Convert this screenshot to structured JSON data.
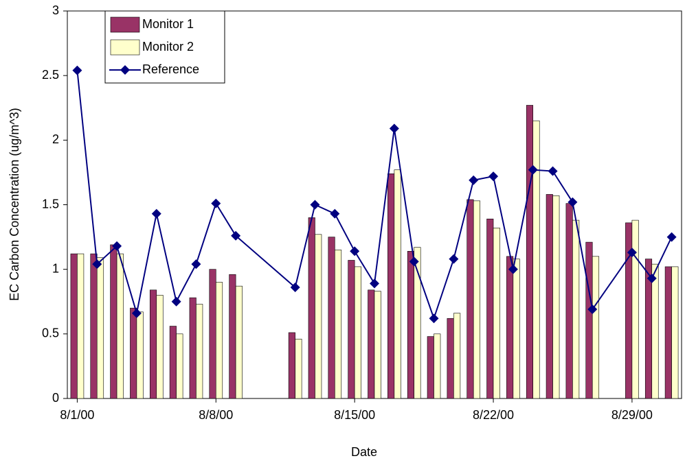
{
  "chart_data": {
    "type": "bar-line",
    "xlabel": "Date",
    "ylabel": "EC Carbon Concentration (ug/m^3)",
    "x": [
      "8/1/00",
      "8/2/00",
      "8/3/00",
      "8/4/00",
      "8/5/00",
      "8/6/00",
      "8/7/00",
      "8/8/00",
      "8/9/00",
      "8/12/00",
      "8/13/00",
      "8/14/00",
      "8/15/00",
      "8/16/00",
      "8/17/00",
      "8/18/00",
      "8/19/00",
      "8/20/00",
      "8/21/00",
      "8/22/00",
      "8/23/00",
      "8/24/00",
      "8/25/00",
      "8/26/00",
      "8/27/00",
      "8/29/00",
      "8/30/00",
      "8/31/00"
    ],
    "series": [
      {
        "name": "Monitor 1",
        "kind": "bar",
        "color": "#993366",
        "values": [
          1.12,
          1.12,
          1.19,
          0.7,
          0.84,
          0.56,
          0.78,
          1.0,
          0.96,
          0.51,
          1.4,
          1.25,
          1.07,
          0.84,
          1.74,
          1.14,
          0.48,
          0.62,
          1.54,
          1.39,
          1.1,
          2.27,
          1.58,
          1.51,
          1.21,
          1.36,
          1.08,
          1.02
        ]
      },
      {
        "name": "Monitor 2",
        "kind": "bar",
        "color": "#FFFFCC",
        "values": [
          1.12,
          1.09,
          1.12,
          0.67,
          0.8,
          0.5,
          0.73,
          0.9,
          0.87,
          0.46,
          1.27,
          1.15,
          1.02,
          0.83,
          1.77,
          1.17,
          0.5,
          0.66,
          1.53,
          1.32,
          1.08,
          2.15,
          1.57,
          1.38,
          1.1,
          1.38,
          1.04,
          1.02
        ]
      },
      {
        "name": "Reference",
        "kind": "line",
        "color": "#000080",
        "values": [
          2.54,
          1.04,
          1.18,
          0.66,
          1.43,
          0.75,
          1.04,
          1.51,
          1.26,
          0.86,
          1.5,
          1.43,
          1.14,
          0.89,
          2.09,
          1.06,
          0.62,
          1.08,
          1.69,
          1.72,
          1.0,
          1.77,
          1.76,
          1.52,
          0.69,
          1.13,
          0.93,
          1.25
        ]
      }
    ],
    "xlim": [
      "8/1/00",
      "8/31/00"
    ],
    "xticks": [
      "8/1/00",
      "8/8/00",
      "8/15/00",
      "8/22/00",
      "8/29/00"
    ],
    "ylim": [
      0,
      3
    ],
    "yticks": [
      0,
      0.5,
      1,
      1.5,
      2,
      2.5,
      3
    ],
    "grid": false,
    "legend": "upper-left"
  }
}
